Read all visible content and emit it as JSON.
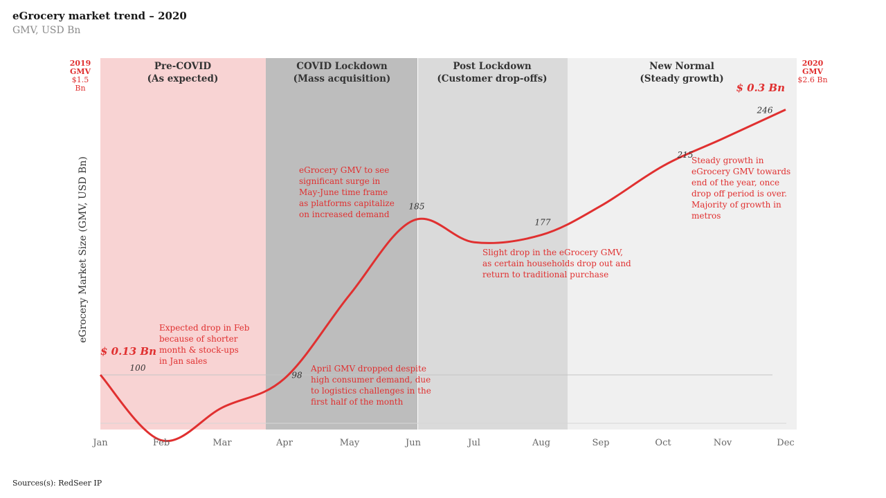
{
  "header": {
    "title": "eGrocery market trend – 2020",
    "subtitle": "GMV, USD Bn"
  },
  "footer": {
    "source": "Sources(s): RedSeer IP"
  },
  "gmv_2019": {
    "year": "2019",
    "label": "GMV",
    "value": "$1.5 Bn"
  },
  "gmv_2020": {
    "year": "2020",
    "label": "GMV",
    "value": "$2.6 Bn"
  },
  "callouts": {
    "start": "$ 0.13 Bn",
    "end": "$ 0.3 Bn"
  },
  "colors": {
    "line": "#e03030",
    "phase_precovid": "#f8d3d3",
    "phase_lockdown": "#bdbdbd",
    "phase_post": "#dadada",
    "phase_newnormal": "#f0f0f0"
  },
  "phases": [
    {
      "line1": "Pre-COVID",
      "line2": "(As expected)"
    },
    {
      "line1": "COVID Lockdown",
      "line2": "(Mass acquisition)"
    },
    {
      "line1": "Post Lockdown",
      "line2": "(Customer drop-offs)"
    },
    {
      "line1": "New Normal",
      "line2": "(Steady growth)"
    }
  ],
  "annotations": {
    "feb": [
      "Expected drop in Feb",
      "because of shorter",
      "month & stock-ups",
      "in Jan sales"
    ],
    "apr": [
      "April GMV dropped despite",
      "high consumer demand, due",
      "to logistics challenges in the",
      "first half of the month"
    ],
    "surge": [
      "eGrocery GMV to see",
      "significant surge in",
      "May-June time frame",
      "as platforms capitalize",
      "on increased demand"
    ],
    "aug": [
      "Slight drop in the eGrocery GMV,",
      "as certain households drop out and",
      "return to traditional purchase"
    ],
    "nov": [
      "Steady growth in",
      "eGrocery GMV towards",
      "end of the year, once",
      "drop off period is over.",
      "Majority of growth in",
      "metros"
    ]
  },
  "chart_data": {
    "type": "line",
    "title": "eGrocery market trend – 2020",
    "subtitle": "GMV, USD Bn",
    "xlabel": "",
    "ylabel": "eGrocery Market Size (GMV, USD Bn)",
    "categories": [
      "Jan",
      "Feb",
      "Mar",
      "Apr",
      "May",
      "Jun",
      "Jul",
      "Aug",
      "Sep",
      "Oct",
      "Nov",
      "Dec"
    ],
    "values": [
      100,
      64,
      82,
      98,
      144,
      185,
      173,
      177,
      193,
      215,
      230,
      246
    ],
    "data_labels": [
      {
        "month": "Jan",
        "text": "100"
      },
      {
        "month": "Apr",
        "text": "98"
      },
      {
        "month": "Jun",
        "text": "185"
      },
      {
        "month": "Aug",
        "text": "177"
      },
      {
        "month": "Oct",
        "text": "215"
      },
      {
        "month": "Dec",
        "text": "246"
      }
    ],
    "baseline": 100,
    "grid": false,
    "legend": "none"
  }
}
